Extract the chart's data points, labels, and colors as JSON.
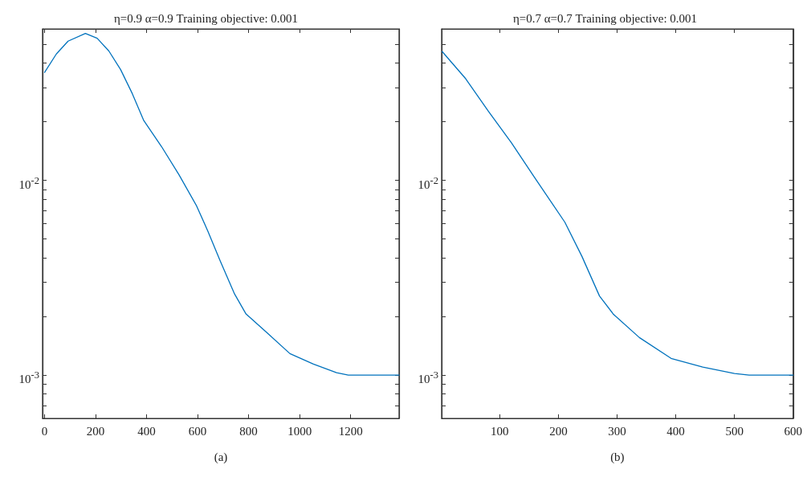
{
  "chart_data": [
    {
      "type": "line",
      "title": "η=0.9 α=0.9 Training objective: 0.001",
      "xlabel": "(a)",
      "log": "y",
      "grid": false,
      "marker": "none",
      "line_style": "solid",
      "xlim": [
        -8,
        1390
      ],
      "xticks": [
        0,
        200,
        400,
        600,
        800,
        1000,
        1200
      ],
      "ylim": [
        0.0006,
        0.06
      ],
      "yticks": [
        {
          "value": 0.0007,
          "label": null
        },
        {
          "value": 0.0008,
          "label": null
        },
        {
          "value": 0.0009,
          "label": null
        },
        {
          "value": 0.001,
          "label": "10$^{-3}$"
        },
        {
          "value": 0.002,
          "label": null
        },
        {
          "value": 0.003,
          "label": null
        },
        {
          "value": 0.004,
          "label": null
        },
        {
          "value": 0.005,
          "label": null
        },
        {
          "value": 0.006,
          "label": null
        },
        {
          "value": 0.007,
          "label": null
        },
        {
          "value": 0.008,
          "label": null
        },
        {
          "value": 0.009,
          "label": null
        },
        {
          "value": 0.01,
          "label": "10$^{-2}$"
        },
        {
          "value": 0.02,
          "label": null
        },
        {
          "value": 0.03,
          "label": null
        },
        {
          "value": 0.04,
          "label": null
        },
        {
          "value": 0.05,
          "label": null
        },
        {
          "value": 0.06,
          "label": null
        }
      ],
      "x": [
        0,
        46,
        92,
        160,
        206,
        252,
        298,
        344,
        389,
        458,
        527,
        596,
        641,
        687,
        745,
        790,
        870,
        962,
        1054,
        1145,
        1191,
        1390
      ],
      "series": [
        {
          "color": "#0072bd",
          "values": [
            0.0359,
            0.0446,
            0.0519,
            0.0569,
            0.0537,
            0.0462,
            0.0371,
            0.0279,
            0.0203,
            0.01496,
            0.01069,
            0.0074,
            0.00546,
            0.0039,
            0.00261,
            0.00206,
            0.00166,
            0.00129,
            0.00114,
            0.00103,
            0.001,
            0.001
          ]
        }
      ]
    },
    {
      "type": "line",
      "title": "η=0.7 α=0.7 Training objective: 0.001",
      "xlabel": "(b)",
      "log": "y",
      "grid": false,
      "marker": "none",
      "line_style": "solid",
      "xlim": [
        1,
        600
      ],
      "xticks": [
        100,
        200,
        300,
        400,
        500,
        600
      ],
      "ylim": [
        0.0006,
        0.06
      ],
      "yticks": [
        {
          "value": 0.0007,
          "label": null
        },
        {
          "value": 0.0008,
          "label": null
        },
        {
          "value": 0.0009,
          "label": null
        },
        {
          "value": 0.001,
          "label": "10$^{-3}$"
        },
        {
          "value": 0.002,
          "label": null
        },
        {
          "value": 0.003,
          "label": null
        },
        {
          "value": 0.004,
          "label": null
        },
        {
          "value": 0.005,
          "label": null
        },
        {
          "value": 0.006,
          "label": null
        },
        {
          "value": 0.007,
          "label": null
        },
        {
          "value": 0.008,
          "label": null
        },
        {
          "value": 0.009,
          "label": null
        },
        {
          "value": 0.01,
          "label": "10$^{-2}$"
        },
        {
          "value": 0.02,
          "label": null
        },
        {
          "value": 0.03,
          "label": null
        },
        {
          "value": 0.04,
          "label": null
        },
        {
          "value": 0.05,
          "label": null
        },
        {
          "value": 0.06,
          "label": null
        }
      ],
      "x": [
        2,
        42,
        81,
        120,
        159,
        211,
        240,
        270,
        294,
        338,
        392,
        446,
        500,
        525,
        600
      ],
      "series": [
        {
          "color": "#0072bd",
          "values": [
            0.0459,
            0.0333,
            0.0226,
            0.0156,
            0.0104,
            0.0061,
            0.00408,
            0.00255,
            0.00205,
            0.00156,
            0.00122,
            0.0011,
            0.00102,
            0.001,
            0.001
          ]
        }
      ]
    }
  ]
}
